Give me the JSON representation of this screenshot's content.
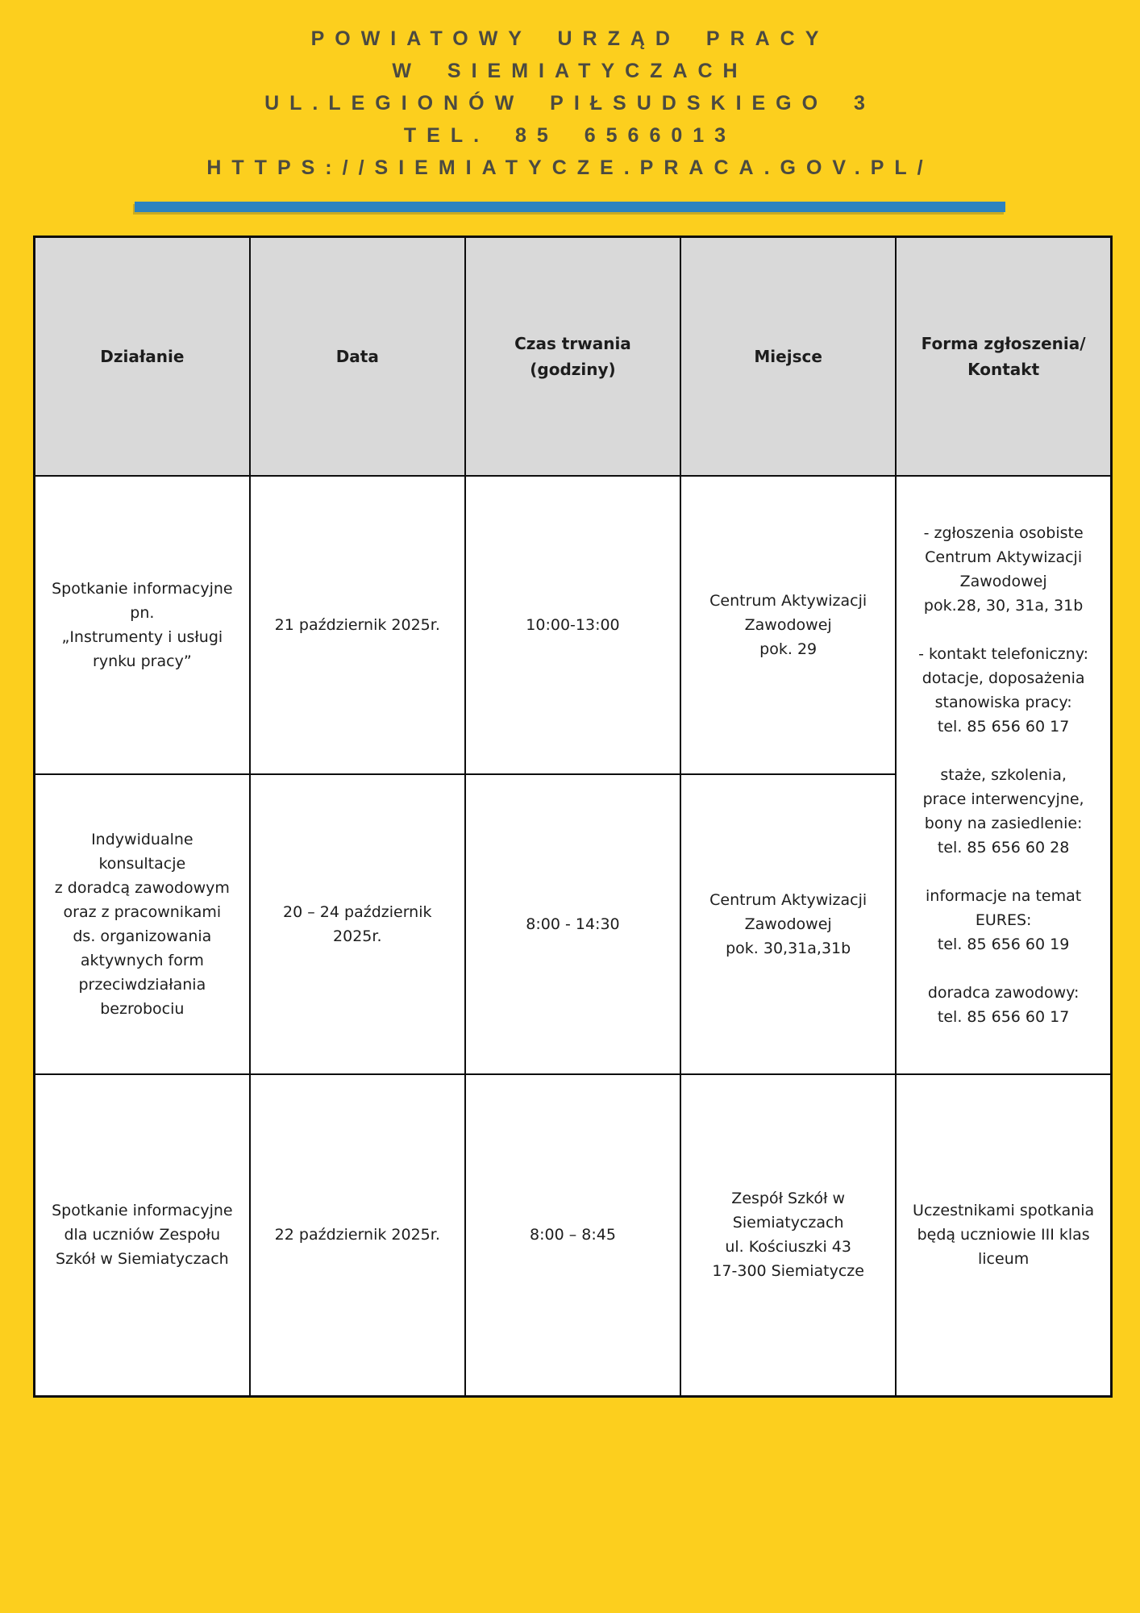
{
  "masthead": {
    "lines": [
      "POWIATOWY URZĄD PRACY",
      "W SIEMIATYCZACH",
      "UL.LEGIONÓW PIŁSUDSKIEGO 3",
      "TEL. 85 6566013",
      "HTTPS://SIEMIATYCZE.PRACA.GOV.PL/"
    ]
  },
  "colors": {
    "page_background": "#FCCF1E",
    "masthead_text": "#4B4A41",
    "accent_bar": "#2D83BE",
    "table_header_background": "#D9D9D9",
    "table_body_background": "#FFFFFF",
    "table_border": "#0D0D0D",
    "table_text": "#1D1D1D"
  },
  "table": {
    "columns": [
      "Działanie",
      "Data",
      "Czas trwania\n(godziny)",
      "Miejsce",
      "Forma zgłoszenia/\nKontakt"
    ],
    "rows": [
      {
        "dzialanie": "Spotkanie informacyjne\npn.\n„Instrumenty i usługi\nrynku pracy”",
        "data": "21 październik 2025r.",
        "czas": "10:00-13:00",
        "miejsce": "Centrum Aktywizacji\nZawodowej\npok. 29",
        "forma": "- zgłoszenia osobiste\nCentrum Aktywizacji\nZawodowej\npok.28, 30, 31a, 31b\n\n- kontakt telefoniczny:\ndotacje, doposażenia\nstanowiska pracy:\ntel. 85 656 60 17\n\nstaże, szkolenia,\nprace interwencyjne,\nbony na zasiedlenie:\ntel. 85 656 60 28\n\ninformacje na temat\nEURES:\ntel. 85 656 60 19\n\ndoradca zawodowy:\ntel. 85 656 60 17"
      },
      {
        "dzialanie": "Indywidualne\nkonsultacje\nz doradcą zawodowym\noraz z pracownikami\nds. organizowania\naktywnych form\nprzeciwdziałania\nbezrobociu",
        "data": "20 – 24 październik\n2025r.",
        "czas": "8:00 - 14:30",
        "miejsce": "Centrum Aktywizacji\nZawodowej\npok. 30,31a,31b"
      },
      {
        "dzialanie": "Spotkanie informacyjne\ndla uczniów Zespołu\nSzkół w Siemiatyczach",
        "data": "22 październik 2025r.",
        "czas": "8:00 – 8:45",
        "miejsce": "Zespół Szkół w\nSiemiatyczach\nul. Kościuszki 43\n17-300 Siemiatycze",
        "forma": "Uczestnikami spotkania\nbędą uczniowie III klas\nliceum"
      }
    ]
  }
}
